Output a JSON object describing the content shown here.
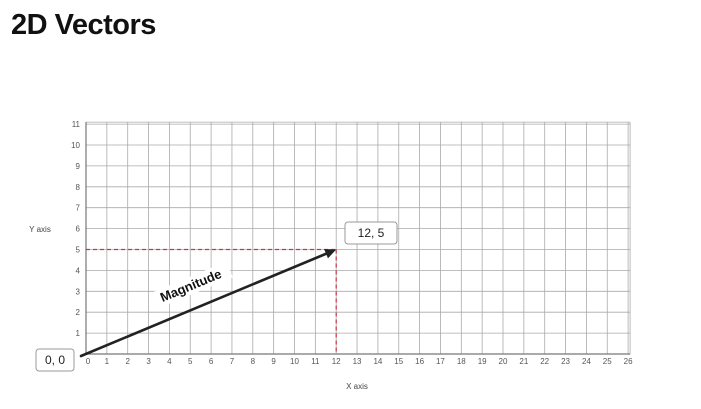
{
  "title": "2D Vectors",
  "diagram": {
    "x_axis_label": "X axis",
    "y_axis_label": "Y axis",
    "x_ticks": [
      "0",
      "1",
      "2",
      "3",
      "4",
      "5",
      "6",
      "7",
      "8",
      "9",
      "10",
      "11",
      "12",
      "13",
      "14",
      "15",
      "16",
      "17",
      "18",
      "19",
      "20",
      "21",
      "22",
      "23",
      "24",
      "25",
      "26"
    ],
    "y_ticks": [
      "1",
      "2",
      "3",
      "4",
      "5",
      "6",
      "7",
      "8",
      "9",
      "10",
      "11"
    ],
    "origin_label": "0, 0",
    "point_label": "12, 5",
    "vector_label": "Magnitude",
    "vector": {
      "from": [
        0,
        0
      ],
      "to": [
        12,
        5
      ]
    },
    "colors": {
      "grid": "#aaaaaa",
      "vector": "#222222",
      "projection": "#c8344a",
      "callout_border": "#999999"
    }
  }
}
